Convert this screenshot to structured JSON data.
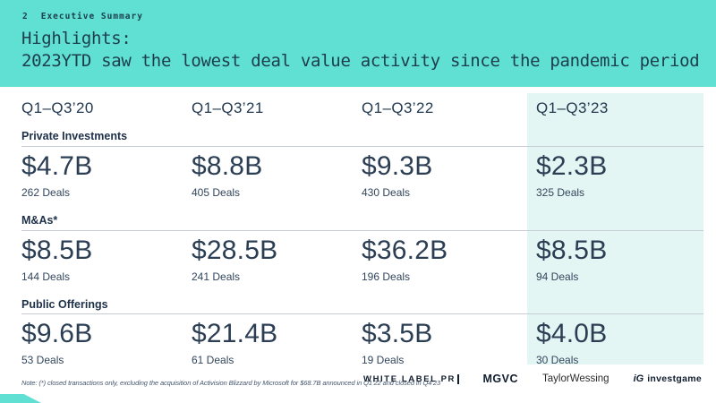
{
  "header": {
    "slide_number": "2",
    "kicker": "Executive Summary",
    "title_line1": "Highlights:",
    "title_line2": "2023YTD saw the lowest deal value activity since the pandemic period",
    "band_color": "#5fe0d2",
    "text_color": "#1d3d4d"
  },
  "table": {
    "columns": [
      "Q1–Q3’20",
      "Q1–Q3’21",
      "Q1–Q3’22",
      "Q1–Q3’23"
    ],
    "highlight_column_index": 3,
    "highlight_color": "#e4f6f3",
    "sections": [
      {
        "label": "Private Investments",
        "cells": [
          {
            "value": "$4.7B",
            "deals": "262 Deals"
          },
          {
            "value": "$8.8B",
            "deals": "405 Deals"
          },
          {
            "value": "$9.3B",
            "deals": "430 Deals"
          },
          {
            "value": "$2.3B",
            "deals": "325 Deals"
          }
        ]
      },
      {
        "label": "M&As*",
        "cells": [
          {
            "value": "$8.5B",
            "deals": "144 Deals"
          },
          {
            "value": "$28.5B",
            "deals": "241 Deals"
          },
          {
            "value": "$36.2B",
            "deals": "196 Deals"
          },
          {
            "value": "$8.5B",
            "deals": "94 Deals"
          }
        ]
      },
      {
        "label": "Public Offerings",
        "cells": [
          {
            "value": "$9.6B",
            "deals": "53 Deals"
          },
          {
            "value": "$21.4B",
            "deals": "61 Deals"
          },
          {
            "value": "$3.5B",
            "deals": "19 Deals"
          },
          {
            "value": "$4.0B",
            "deals": "30 Deals"
          }
        ]
      }
    ]
  },
  "footer": {
    "note": "Note: (*) closed transactions only, excluding the acquisition of Activision Blizzard by Microsoft for $68.7B announced in Q1’22 and closed in Q4’23",
    "logos": [
      {
        "label": "WHITE LABEL PR"
      },
      {
        "label": "MGVC"
      },
      {
        "label": "TaylorWessing"
      },
      {
        "mark": "iG",
        "label": "investgame"
      }
    ]
  }
}
